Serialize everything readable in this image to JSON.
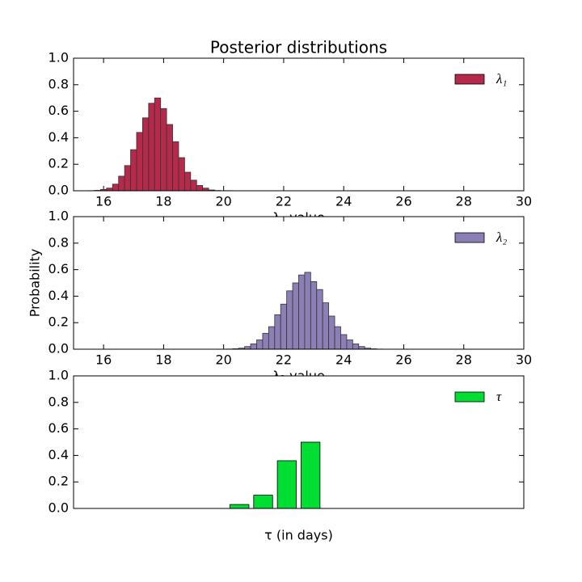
{
  "chart_data": [
    {
      "type": "histogram",
      "title": "Posterior distributions",
      "xlabel": "λ₁ value",
      "legend": "upper right",
      "bins": [
        15.3,
        15.5,
        15.7,
        15.9,
        16.1,
        16.3,
        16.5,
        16.7,
        16.9,
        17.1,
        17.3,
        17.5,
        17.7,
        17.9,
        18.1,
        18.3,
        18.5,
        18.7,
        18.9,
        19.1,
        19.3,
        19.5,
        19.7,
        19.9,
        20.1,
        20.3
      ],
      "series": [
        {
          "name": "λ₁",
          "color": "#b5294a",
          "values": [
            0.0003,
            0.001,
            0.003,
            0.01,
            0.02,
            0.05,
            0.11,
            0.19,
            0.31,
            0.44,
            0.55,
            0.66,
            0.7,
            0.62,
            0.5,
            0.37,
            0.25,
            0.14,
            0.08,
            0.04,
            0.02,
            0.006,
            0.002,
            0.001,
            0.001
          ]
        }
      ],
      "xlim": [
        15,
        30
      ],
      "xticks": [
        16,
        18,
        20,
        22,
        24,
        26,
        28,
        30
      ],
      "ylim": [
        0,
        1
      ],
      "yticks": [
        {
          "value": 0,
          "label": "0.0"
        },
        0.2,
        0.4,
        0.6,
        0.8,
        {
          "value": 1,
          "label": "1.0"
        }
      ]
    },
    {
      "type": "histogram",
      "xlabel": "λ₂ value",
      "ylabel": "Probability",
      "legend": "upper right",
      "bins": [
        19.3,
        19.5,
        19.7,
        19.9,
        20.1,
        20.3,
        20.5,
        20.7,
        20.9,
        21.1,
        21.3,
        21.5,
        21.7,
        21.9,
        22.1,
        22.3,
        22.5,
        22.7,
        22.9,
        23.1,
        23.3,
        23.5,
        23.7,
        23.9,
        24.1,
        24.3,
        24.5,
        24.7,
        24.9,
        25.1,
        25.3,
        25.5,
        25.7,
        25.9,
        26.1,
        26.3,
        26.5
      ],
      "series": [
        {
          "name": "λ₂",
          "color": "#8c7fb6",
          "values": [
            0.0001,
            0.0001,
            0.0002,
            0.0005,
            0.0013,
            0.0033,
            0.008,
            0.02,
            0.04,
            0.07,
            0.12,
            0.17,
            0.26,
            0.34,
            0.44,
            0.5,
            0.56,
            0.58,
            0.51,
            0.45,
            0.35,
            0.25,
            0.17,
            0.11,
            0.07,
            0.04,
            0.02,
            0.008,
            0.003,
            0.001,
            0.0005,
            0.0002,
            0.0001,
            0.0001,
            0.0001,
            0.0001
          ]
        }
      ],
      "xlim": [
        15,
        30
      ],
      "xticks": [
        16,
        18,
        20,
        22,
        24,
        26,
        28,
        30
      ],
      "ylim": [
        0,
        1
      ],
      "yticks": [
        {
          "value": 0,
          "label": "0.0"
        },
        0.2,
        0.4,
        0.6,
        0.8,
        {
          "value": 1,
          "label": "1.0"
        }
      ]
    },
    {
      "type": "bar",
      "xlabel": "τ (in days)",
      "legend": "upper right",
      "x": [
        42,
        43,
        44,
        45
      ],
      "series": [
        {
          "name": "τ",
          "color": "#00dd33",
          "values": [
            0.03,
            0.1,
            0.36,
            0.5
          ]
        }
      ],
      "xlim": [
        35,
        54
      ],
      "ylim": [
        0,
        1
      ],
      "yticks": [
        {
          "value": 0,
          "label": "0.0"
        },
        0.2,
        0.4,
        0.6,
        0.8,
        {
          "value": 1,
          "label": "1.0"
        }
      ]
    }
  ]
}
